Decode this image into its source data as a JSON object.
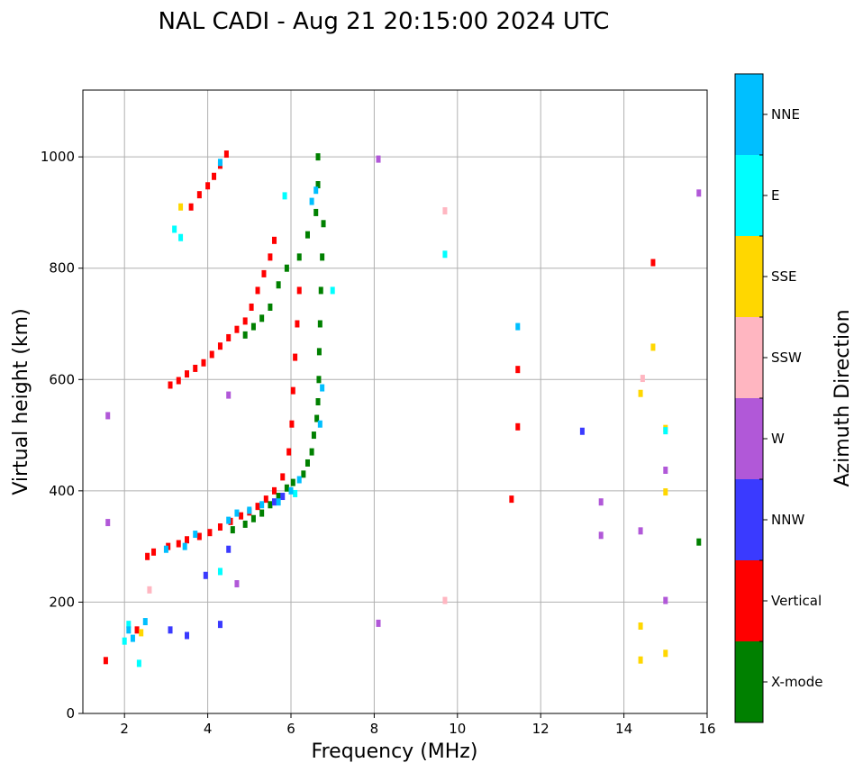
{
  "chart_data": {
    "type": "scatter",
    "title": "NAL CADI - Aug 21 20:15:00 2024 UTC",
    "xlabel": "Frequency (MHz)",
    "ylabel": "Virtual height (km)",
    "xlim": [
      1,
      16
    ],
    "ylim": [
      0,
      1120
    ],
    "xticks": [
      "2",
      "4",
      "6",
      "8",
      "10",
      "12",
      "14",
      "16"
    ],
    "yticks": [
      "0",
      "200",
      "400",
      "600",
      "800",
      "1000"
    ],
    "grid": true,
    "colorbar": {
      "label": "Azimuth Direction",
      "categories": [
        {
          "name": "X-mode",
          "color": "#008000"
        },
        {
          "name": "Vertical",
          "color": "#ff0000"
        },
        {
          "name": "NNW",
          "color": "#3a3aff"
        },
        {
          "name": "W",
          "color": "#b158d8"
        },
        {
          "name": "SSW",
          "color": "#ffb6c1"
        },
        {
          "name": "SSE",
          "color": "#ffd700"
        },
        {
          "name": "E",
          "color": "#00ffff"
        },
        {
          "name": "NNE",
          "color": "#00bfff"
        }
      ]
    },
    "series": [
      {
        "name": "Vertical",
        "points": [
          [
            1.55,
            95
          ],
          [
            2.3,
            150
          ],
          [
            2.55,
            282
          ],
          [
            2.7,
            290
          ],
          [
            3.05,
            300
          ],
          [
            3.3,
            305
          ],
          [
            3.5,
            312
          ],
          [
            3.8,
            318
          ],
          [
            4.05,
            325
          ],
          [
            4.3,
            335
          ],
          [
            4.55,
            345
          ],
          [
            4.8,
            355
          ],
          [
            5.0,
            362
          ],
          [
            5.2,
            372
          ],
          [
            5.4,
            385
          ],
          [
            5.6,
            400
          ],
          [
            5.8,
            425
          ],
          [
            5.95,
            470
          ],
          [
            6.02,
            520
          ],
          [
            6.05,
            580
          ],
          [
            6.1,
            640
          ],
          [
            6.15,
            700
          ],
          [
            6.2,
            760
          ],
          [
            3.1,
            590
          ],
          [
            3.3,
            598
          ],
          [
            3.5,
            610
          ],
          [
            3.7,
            620
          ],
          [
            3.9,
            630
          ],
          [
            4.1,
            645
          ],
          [
            4.3,
            660
          ],
          [
            4.5,
            675
          ],
          [
            4.7,
            690
          ],
          [
            4.9,
            705
          ],
          [
            5.05,
            730
          ],
          [
            5.2,
            760
          ],
          [
            5.35,
            790
          ],
          [
            5.5,
            820
          ],
          [
            5.6,
            850
          ],
          [
            3.6,
            910
          ],
          [
            3.8,
            932
          ],
          [
            4.0,
            948
          ],
          [
            4.15,
            965
          ],
          [
            4.3,
            985
          ],
          [
            4.45,
            1005
          ],
          [
            11.3,
            385
          ],
          [
            11.45,
            515
          ],
          [
            11.45,
            618
          ],
          [
            14.7,
            810
          ]
        ]
      },
      {
        "name": "X-mode",
        "points": [
          [
            4.6,
            330
          ],
          [
            4.9,
            340
          ],
          [
            5.1,
            350
          ],
          [
            5.3,
            360
          ],
          [
            5.5,
            375
          ],
          [
            5.7,
            390
          ],
          [
            5.9,
            405
          ],
          [
            6.05,
            415
          ],
          [
            6.3,
            430
          ],
          [
            6.4,
            450
          ],
          [
            6.5,
            470
          ],
          [
            6.55,
            500
          ],
          [
            6.62,
            530
          ],
          [
            6.65,
            560
          ],
          [
            6.67,
            600
          ],
          [
            6.68,
            650
          ],
          [
            6.7,
            700
          ],
          [
            6.72,
            760
          ],
          [
            6.75,
            820
          ],
          [
            6.78,
            880
          ],
          [
            4.9,
            680
          ],
          [
            5.1,
            695
          ],
          [
            5.3,
            710
          ],
          [
            5.5,
            730
          ],
          [
            5.7,
            770
          ],
          [
            5.9,
            800
          ],
          [
            6.2,
            820
          ],
          [
            6.4,
            860
          ],
          [
            6.6,
            900
          ],
          [
            6.65,
            950
          ],
          [
            6.65,
            1000
          ],
          [
            15.8,
            308
          ]
        ]
      },
      {
        "name": "NNW",
        "points": [
          [
            3.1,
            150
          ],
          [
            3.5,
            140
          ],
          [
            3.95,
            248
          ],
          [
            4.3,
            160
          ],
          [
            4.5,
            295
          ],
          [
            5.6,
            380
          ],
          [
            5.8,
            390
          ],
          [
            13.0,
            507
          ]
        ]
      },
      {
        "name": "W",
        "points": [
          [
            1.6,
            535
          ],
          [
            1.6,
            343
          ],
          [
            4.5,
            572
          ],
          [
            4.7,
            233
          ],
          [
            8.1,
            996
          ],
          [
            8.1,
            162
          ],
          [
            13.45,
            320
          ],
          [
            13.45,
            380
          ],
          [
            14.4,
            328
          ],
          [
            15.0,
            437
          ],
          [
            15.0,
            203
          ],
          [
            15.8,
            935
          ]
        ]
      },
      {
        "name": "SSW",
        "points": [
          [
            2.6,
            222
          ],
          [
            9.7,
            903
          ],
          [
            9.7,
            203
          ],
          [
            14.45,
            602
          ]
        ]
      },
      {
        "name": "SSE",
        "points": [
          [
            2.4,
            145
          ],
          [
            3.35,
            910
          ],
          [
            14.4,
            96
          ],
          [
            14.4,
            157
          ],
          [
            14.4,
            575
          ],
          [
            14.7,
            658
          ],
          [
            15.0,
            108
          ],
          [
            15.0,
            398
          ],
          [
            15.0,
            512
          ]
        ]
      },
      {
        "name": "E",
        "points": [
          [
            2.0,
            130
          ],
          [
            2.1,
            160
          ],
          [
            2.35,
            90
          ],
          [
            3.2,
            870
          ],
          [
            3.35,
            855
          ],
          [
            4.3,
            255
          ],
          [
            5.85,
            930
          ],
          [
            6.1,
            395
          ],
          [
            7.0,
            760
          ],
          [
            9.7,
            825
          ],
          [
            15.0,
            508
          ]
        ]
      },
      {
        "name": "NNE",
        "points": [
          [
            2.1,
            150
          ],
          [
            2.2,
            135
          ],
          [
            2.5,
            165
          ],
          [
            3.0,
            295
          ],
          [
            3.45,
            300
          ],
          [
            3.7,
            322
          ],
          [
            4.5,
            347
          ],
          [
            4.7,
            360
          ],
          [
            5.0,
            365
          ],
          [
            5.3,
            375
          ],
          [
            5.7,
            380
          ],
          [
            6.0,
            400
          ],
          [
            6.2,
            420
          ],
          [
            6.5,
            920
          ],
          [
            6.6,
            940
          ],
          [
            6.7,
            520
          ],
          [
            6.75,
            585
          ],
          [
            11.45,
            695
          ],
          [
            4.3,
            990
          ]
        ]
      }
    ]
  }
}
